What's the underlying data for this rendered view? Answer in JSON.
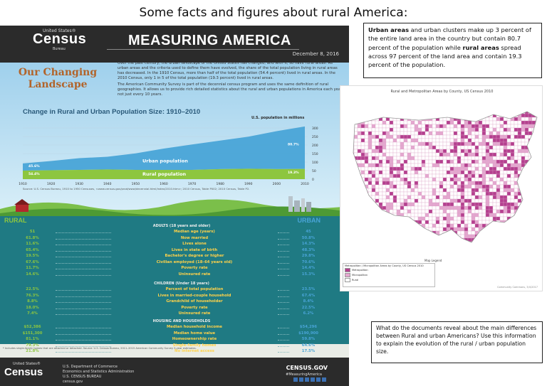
{
  "page_title": "Some facts and figures about rural America:",
  "infographic": {
    "header": {
      "logo_top": "United States®",
      "logo_main": "Census",
      "logo_bottom": "Bureau",
      "title": "MEASURING AMERICA",
      "date": "December 8, 2016"
    },
    "section_title": "Our Changing Landscape",
    "intro_paragraphs": [
      "Over the past century, the urban landscape of the United States has changed, and with it, so have rural areas. As urban areas and the criteria used to define them have evolved, the share of the total population living in rural areas has decreased. In the 1910 Census, more than half of the total population (54.4 percent) lived in rural areas. In the 2010 Census, only 1 in 5 of the total population (19.3 percent) lived in rural areas.",
      "The American Community Survey is part of the decennial census program and uses the same definition of rural geographies. It allows us to provide rich detailed statistics about the rural and urban populations in America each year, not just every 10 years."
    ],
    "chart_title": "Change in Rural and Urban Population Size: 1910–2010",
    "y_axis_label": "U.S. population in millions",
    "urban_label": "Urban population",
    "rural_label": "Rural population",
    "source_note": "Source: U.S. Census Bureau, 1910 to 1950 Censuses, <www.census.gov/prod/www/decennial.html/index/2010.htm>; 2010 Census, Table P002; 2010 Census, Table P2.",
    "rural_heading": "RURAL",
    "urban_heading": "URBAN",
    "sections": [
      {
        "heading": "ADULTS (18 years and older)",
        "rows": [
          {
            "rural": "51",
            "label": "Median age (years)",
            "urban": "45"
          },
          {
            "rural": "61.8%",
            "label": "Now married",
            "urban": "50.8%"
          },
          {
            "rural": "11.6%",
            "label": "Lives alone",
            "urban": "14.3%"
          },
          {
            "rural": "65.4%",
            "label": "Lives in state of birth",
            "urban": "48.3%"
          },
          {
            "rural": "19.5%",
            "label": "Bachelor's degree or higher",
            "urban": "29.8%"
          },
          {
            "rural": "67.6%",
            "label": "Civilian employed (18–64 years old)",
            "urban": "70.6%"
          },
          {
            "rural": "11.7%",
            "label": "Poverty rate",
            "urban": "14.4%"
          },
          {
            "rural": "14.6%",
            "label": "Uninsured rate",
            "urban": "15.3%"
          }
        ]
      },
      {
        "heading": "CHILDREN (Under 18 years)",
        "rows": [
          {
            "rural": "22.5%",
            "label": "Percent of total population",
            "urban": "23.5%"
          },
          {
            "rural": "76.3%",
            "label": "Lives in married-couple household",
            "urban": "67.4%"
          },
          {
            "rural": "8.8%",
            "label": "Grandchild of householder",
            "urban": "8.4%"
          },
          {
            "rural": "18.0%",
            "label": "Poverty rate",
            "urban": "22.5%"
          },
          {
            "rural": "7.4%",
            "label": "Uninsured rate",
            "urban": "6.2%"
          }
        ]
      },
      {
        "heading": "HOUSING AND HOUSEHOLDS",
        "rows": [
          {
            "rural": "$52,386",
            "label": "Median household income",
            "urban": "$54,296"
          },
          {
            "rural": "$151,300",
            "label": "Median home value",
            "urban": "$190,900"
          },
          {
            "rural": "81.1%",
            "label": "Homeownership rate",
            "urban": "59.8%"
          },
          {
            "rural": "79.3%",
            "label": "Single-family homes",
            "urban": "64.6%"
          },
          {
            "rural": "21.8%",
            "label": "No Internet access",
            "urban": "17.5%"
          }
        ]
      }
    ],
    "footnote": "* Includes single-family homes that are attached or detached. Source: U.S. Census Bureau, 2011–2015 American Community Survey 5-year estimates.",
    "footer": {
      "logo_top": "United States®",
      "logo_main": "Census",
      "dept_lines": [
        "U.S. Department of Commerce",
        "Economics and Statistics Administration",
        "U.S. CENSUS BUREAU",
        "census.gov"
      ],
      "website": "CENSUS.GOV",
      "hashtag": "#MeasuringAmerica"
    },
    "colors": {
      "urban": "#49a4d7",
      "rural": "#8dc63f",
      "header": "#2b2b2b",
      "panel": "#1f7a83"
    }
  },
  "urban_box": {
    "parts": [
      {
        "text": "Urban areas",
        "bold": true
      },
      {
        "text": " and urban clusters make up 3 percent of the entire land area in the country but contain 80.7 percent of the population while ",
        "bold": false
      },
      {
        "text": "rural areas",
        "bold": true
      },
      {
        "text": " spread across 97 percent of the land area and contain 19.3 percent of the population.",
        "bold": false
      }
    ]
  },
  "map": {
    "title": "Rural and Metropolitan Areas by County, US Census 2010",
    "legend_title": "Map Legend",
    "legend_header": "Metropolitan / Micropolitan Areas by County, US Census 2010",
    "legend_items": [
      {
        "label": "Metropolitan",
        "color": "#b5408f"
      },
      {
        "label": "Micropolitan",
        "color": "#e4a7cf"
      },
      {
        "label": "Rural",
        "color": "#ffffff"
      }
    ],
    "credit": "Community Commons, 3/4/2017"
  },
  "question_box": {
    "text": "What do the documents reveal about the main differences between Rural and urban Americans?  Use this information to explain the evolution of the rural / urban population size."
  },
  "chart_data": {
    "type": "area",
    "title": "Change in Rural and Urban Population Size: 1910–2010",
    "ylabel": "U.S. population in millions",
    "x": [
      1910,
      1920,
      1930,
      1940,
      1950,
      1960,
      1970,
      1980,
      1990,
      2000,
      2010
    ],
    "ylim": [
      0,
      300
    ],
    "y_ticks": [
      0,
      50,
      100,
      150,
      200,
      250,
      300
    ],
    "series": [
      {
        "name": "Rural population",
        "values": [
          50,
          52,
          54,
          57,
          54,
          54,
          54,
          59,
          61,
          59,
          60
        ]
      },
      {
        "name": "Urban population",
        "values": [
          42,
          54,
          69,
          74,
          97,
          125,
          149,
          167,
          188,
          222,
          249
        ]
      }
    ],
    "annotations": [
      "45.6%",
      "54.4%",
      "80.7%",
      "19.3%"
    ]
  }
}
